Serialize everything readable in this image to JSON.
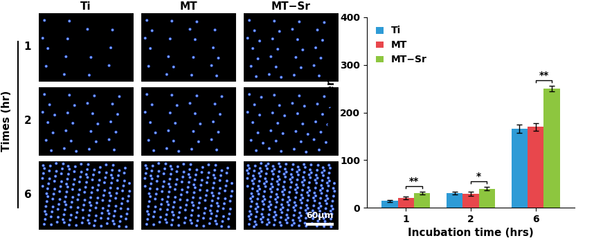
{
  "chart_data": {
    "type": "bar",
    "x_label": "Incubation time (hrs)",
    "y_label": "Cell numbers",
    "categories": [
      "1",
      "2",
      "6"
    ],
    "series": [
      {
        "name": "Ti",
        "color": "#2e9bd6",
        "values": [
          14,
          30,
          166
        ],
        "errors": [
          2,
          3,
          9
        ]
      },
      {
        "name": "MT",
        "color": "#e8474c",
        "values": [
          20,
          29,
          170
        ],
        "errors": [
          3,
          4,
          8
        ]
      },
      {
        "name": "MT−Sr",
        "color": "#8dc63f",
        "values": [
          30,
          40,
          250
        ],
        "errors": [
          3,
          3,
          6
        ]
      }
    ],
    "ylim": [
      0,
      400
    ],
    "yticks": [
      0,
      100,
      200,
      300,
      400
    ],
    "legend": "upper left",
    "grid": false,
    "annotations": [
      {
        "category": "1",
        "between": [
          "MT",
          "MT−Sr"
        ],
        "text": "**"
      },
      {
        "category": "2",
        "between": [
          "MT",
          "MT−Sr"
        ],
        "text": "*"
      },
      {
        "category": "6",
        "between": [
          "MT",
          "MT−Sr"
        ],
        "text": "**"
      }
    ]
  },
  "image_panels": {
    "columns": [
      "Ti",
      "MT",
      "MT−Sr"
    ],
    "rows": [
      "1",
      "2",
      "6"
    ],
    "row_axis_label": "Times (hr)",
    "scale_bar": "60μm"
  }
}
